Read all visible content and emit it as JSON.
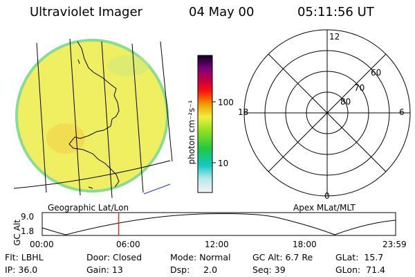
{
  "header": {
    "instrument": "Ultraviolet Imager",
    "date": "04 May 00",
    "time": "05:11:56 UT"
  },
  "colorbar": {
    "label": "photon cm⁻²s⁻¹",
    "ticks": [
      "100",
      "10"
    ]
  },
  "polar_plot": {
    "mlt_labels": [
      "12",
      "18",
      "6",
      "0"
    ],
    "lat_labels": [
      "60",
      "70",
      "80"
    ]
  },
  "panel_labels": {
    "left": "Geographic Lat/Lon",
    "right": "Apex MLat/MLT"
  },
  "altitude_plot": {
    "ylabel": "GC Alt",
    "yticks": [
      "9.0",
      "1.8"
    ],
    "xticks": [
      "00:00",
      "06:00",
      "12:00",
      "18:00",
      "23:59"
    ],
    "marker_hour": 5.2
  },
  "info": {
    "filter": "Flt: LBHL",
    "ip": "IP: 36.0",
    "door": "Door: Closed",
    "gain": "Gain: 13",
    "mode": "Mode: Normal",
    "dsp": "Dsp:     2.0",
    "gc_alt": "GC Alt: 6.7 Re",
    "seq": "Seq: 39",
    "glat": "GLat:  15.7",
    "glon": "GLon:  71.4"
  },
  "colors": {
    "disk_fill": "#f1ef60",
    "disk_edge": "#7fdc9a",
    "marker": "#ff0000",
    "limb_line": "#2030ff"
  }
}
